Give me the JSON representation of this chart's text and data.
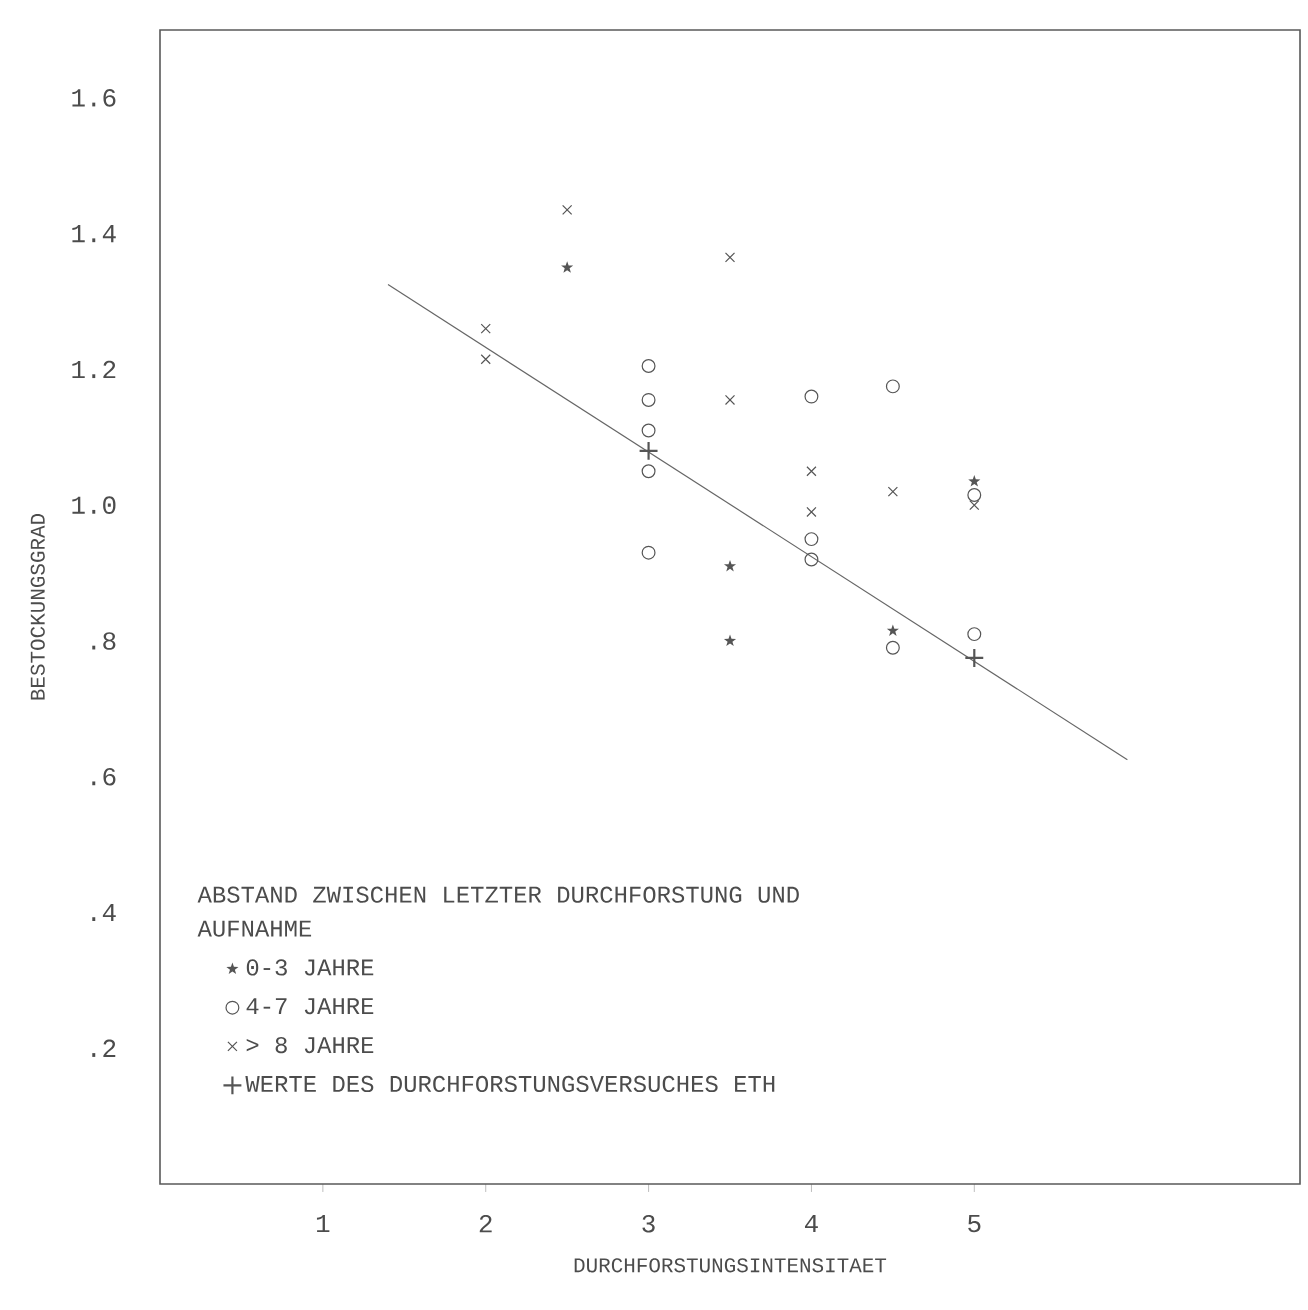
{
  "chart_data": {
    "type": "scatter",
    "xlabel": "DURCHFORSTUNGSINTENSITAET",
    "ylabel": "BESTOCKUNGSGRAD",
    "legend_title": "ABSTAND ZWISCHEN LETZTER DURCHFORSTUNG UND AUFNAHME",
    "legend": "bottom left",
    "xlim": [
      0,
      7
    ],
    "ylim": [
      0,
      1.7
    ],
    "xticks": [
      1,
      2,
      3,
      4,
      5
    ],
    "yticks": [
      {
        "value": 0.2,
        "label": ".2"
      },
      {
        "value": 0.4,
        "label": ".4"
      },
      {
        "value": 0.6,
        "label": ".6"
      },
      {
        "value": 0.8,
        "label": ".8"
      },
      {
        "value": 1.0,
        "label": "1.0"
      },
      {
        "value": 1.2,
        "label": "1.2"
      },
      {
        "value": 1.4,
        "label": "1.4"
      },
      {
        "value": 1.6,
        "label": "1.6"
      }
    ],
    "series": [
      {
        "name": "0-3 JAHRE",
        "color": "#555555",
        "marker": "star",
        "x": [
          2.5,
          3.5,
          3.5,
          4.5,
          5
        ],
        "values": [
          1.35,
          0.91,
          0.8,
          0.815,
          1.035
        ]
      },
      {
        "name": "4-7 JAHRE",
        "color": "#555555",
        "marker": "circle",
        "x": [
          3,
          3,
          3,
          3,
          3,
          4,
          4,
          4,
          4.5,
          4.5,
          5,
          5
        ],
        "values": [
          1.205,
          1.155,
          1.11,
          1.05,
          0.93,
          1.16,
          0.95,
          0.92,
          1.175,
          0.79,
          0.81,
          1.015
        ]
      },
      {
        "name": "> 8 JAHRE",
        "color": "#555555",
        "marker": "cross",
        "x": [
          2,
          2,
          2.5,
          3.5,
          3.5,
          4,
          4,
          4.5,
          5
        ],
        "values": [
          1.26,
          1.215,
          1.435,
          1.365,
          1.155,
          1.05,
          0.99,
          1.02,
          1.0
        ]
      },
      {
        "name": "WERTE DES DURCHFORSTUNGSVERSUCHES ETH",
        "color": "#555555",
        "marker": "plus",
        "x": [
          3,
          5
        ],
        "values": [
          1.08,
          0.775
        ]
      },
      {
        "type": "line",
        "color": "#666666",
        "marker": "none",
        "x": [
          1.4,
          5.94
        ],
        "values": [
          1.325,
          0.625
        ]
      }
    ]
  }
}
